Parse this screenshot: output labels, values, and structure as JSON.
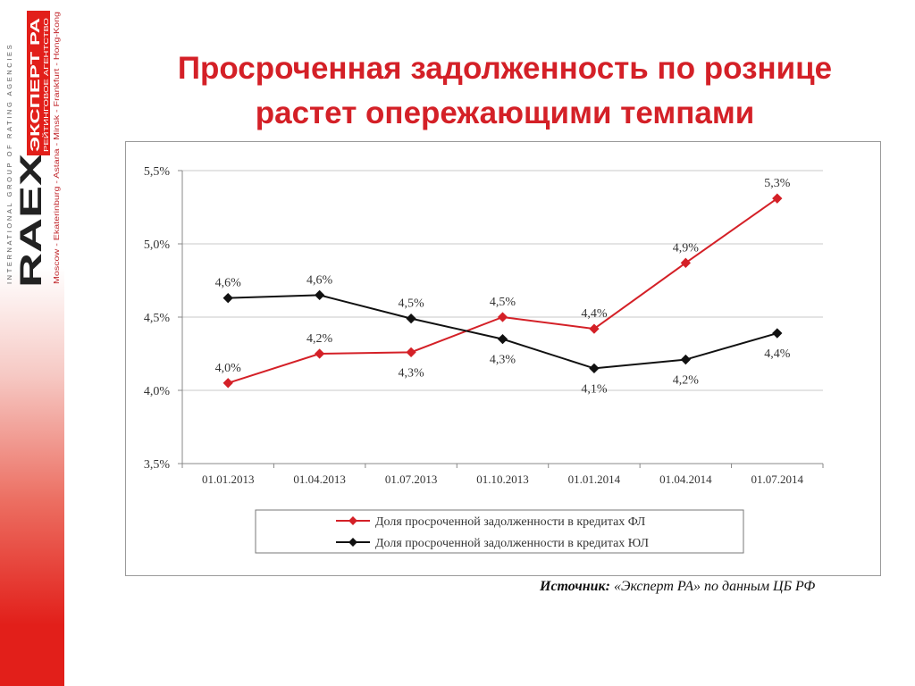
{
  "logo": {
    "tagline": "INTERNATIONAL GROUP OF RATING AGENCIES",
    "brand_main": "RAEX",
    "brand_ru": "ЭКСПЕРТ РА",
    "brand_sub": "РЕЙТИНГОВОЕ АГЕНТСТВО",
    "cities": "Moscow - Ekaterinburg - Astana - Minsk - Frankfurt - Hong-Kong"
  },
  "title_line1": "Просроченная задолженность по рознице",
  "title_line2": "растет опережающими темпами",
  "source_label": "Источник:",
  "source_text": " «Эксперт РА» по данным ЦБ РФ",
  "colors": {
    "red": "#d42027",
    "black": "#111111",
    "accent": "#e21f1a"
  },
  "chart_data": {
    "type": "line",
    "categories": [
      "01.01.2013",
      "01.04.2013",
      "01.07.2013",
      "01.10.2013",
      "01.01.2014",
      "01.04.2014",
      "01.07.2014"
    ],
    "ylim": [
      3.5,
      5.5
    ],
    "yticks": [
      3.5,
      4.0,
      4.5,
      5.0,
      5.5
    ],
    "ytick_labels": [
      "3,5%",
      "4,0%",
      "4,5%",
      "5,0%",
      "5,5%"
    ],
    "grid": "horizontal",
    "legend_position": "bottom",
    "series": [
      {
        "name": "Доля просроченной задолженности в кредитах ФЛ",
        "color": "#d42027",
        "values": [
          4.05,
          4.25,
          4.26,
          4.5,
          4.42,
          4.87,
          5.31
        ],
        "labels": [
          "4,0%",
          "4,2%",
          "4,3%",
          "4,5%",
          "4,4%",
          "4,9%",
          "5,3%"
        ],
        "label_side": [
          "above",
          "above",
          "below",
          "above",
          "above",
          "above",
          "above"
        ]
      },
      {
        "name": "Доля просроченной задолженности в кредитах ЮЛ",
        "color": "#111111",
        "values": [
          4.63,
          4.65,
          4.49,
          4.35,
          4.15,
          4.21,
          4.39
        ],
        "labels": [
          "4,6%",
          "4,6%",
          "4,5%",
          "4,3%",
          "4,1%",
          "4,2%",
          "4,4%"
        ],
        "label_side": [
          "above",
          "above",
          "above",
          "below",
          "below",
          "below",
          "below"
        ]
      }
    ]
  }
}
